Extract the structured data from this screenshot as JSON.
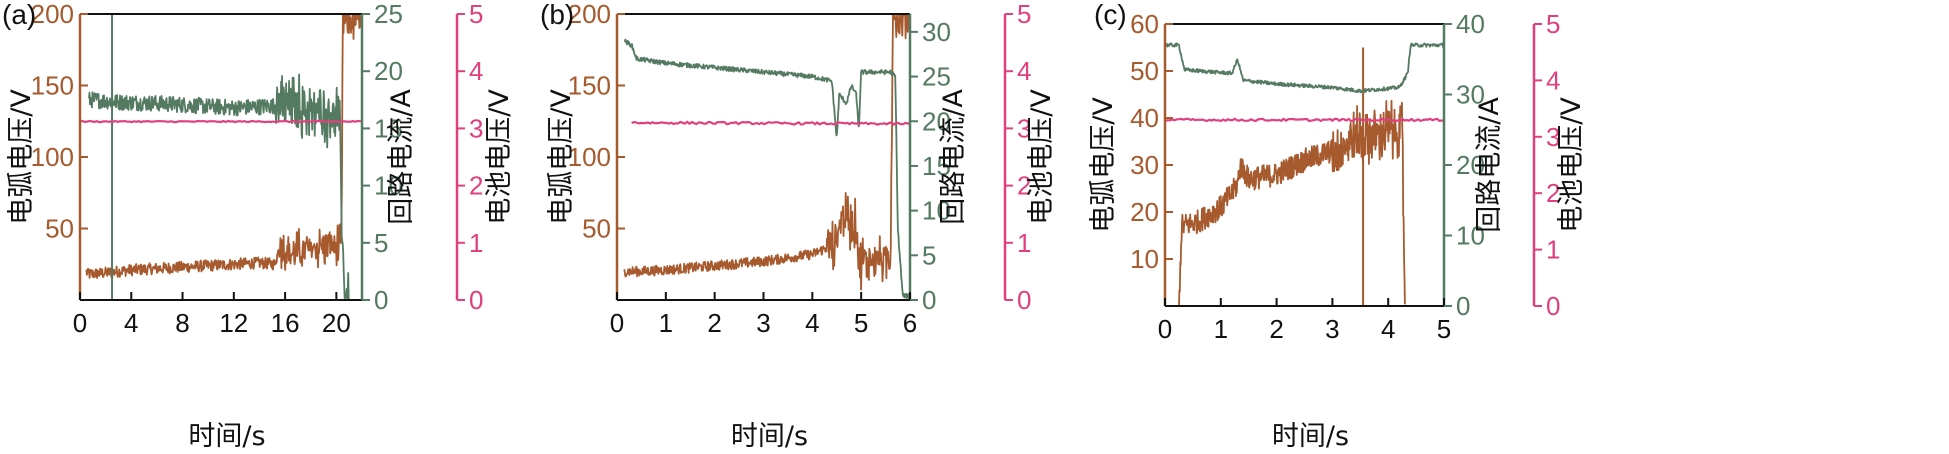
{
  "colors": {
    "arc": "#a65a2e",
    "current": "#557a62",
    "battery": "#e0407e",
    "axis": "#111111"
  },
  "chart_data": [
    {
      "type": "line",
      "panel_label": "(a)",
      "xlabel": "时间/s",
      "xlim": [
        0,
        22
      ],
      "xticks": [
        0,
        4,
        8,
        12,
        16,
        20
      ],
      "y_axes": [
        {
          "name": "电弧电压/V",
          "lim": [
            0,
            200
          ],
          "ticks": [
            50,
            100,
            150,
            200
          ],
          "color": "arc"
        },
        {
          "name": "回路电流/A",
          "lim": [
            0,
            25
          ],
          "ticks": [
            0,
            5,
            10,
            15,
            20,
            25
          ],
          "color": "current"
        },
        {
          "name": "电池电压/V",
          "lim": [
            0,
            5
          ],
          "ticks": [
            0,
            1,
            2,
            3,
            4,
            5
          ],
          "color": "battery"
        }
      ],
      "series": [
        {
          "axis": 0,
          "points": [
            [
              0.5,
              20
            ],
            [
              0.6,
              18
            ],
            [
              2,
              19
            ],
            [
              4,
              21
            ],
            [
              6,
              22
            ],
            [
              8,
              23
            ],
            [
              10,
              24
            ],
            [
              12,
              25
            ],
            [
              14,
              26
            ],
            [
              15.2,
              25
            ],
            [
              15.6,
              38
            ],
            [
              16.5,
              32
            ],
            [
              18,
              36
            ],
            [
              19.5,
              38
            ],
            [
              20.4,
              38
            ],
            [
              20.5,
              195
            ],
            [
              22,
              195
            ]
          ],
          "noise": 4,
          "spike_start": 15.5,
          "spike_amp": 14
        },
        {
          "axis": 1,
          "points": [
            [
              0.7,
              17.5
            ],
            [
              1,
              17.5
            ],
            [
              3,
              17.3
            ],
            [
              6,
              17.2
            ],
            [
              9,
              17
            ],
            [
              12,
              16.8
            ],
            [
              14,
              16.9
            ],
            [
              15.4,
              17
            ],
            [
              18,
              16.5
            ],
            [
              20.2,
              16.4
            ],
            [
              20.6,
              1
            ],
            [
              21,
              0.2
            ]
          ],
          "noise": 0.7,
          "spike_start": 15.3,
          "spike_amp": 2.8,
          "extra": [
            [
              2.5,
              25
            ]
          ]
        },
        {
          "axis": 2,
          "points": [
            [
              0,
              3.12
            ],
            [
              22,
              3.12
            ]
          ],
          "noise": 0.01
        }
      ]
    },
    {
      "type": "line",
      "panel_label": "(b)",
      "xlabel": "时间/s",
      "xlim": [
        0,
        6
      ],
      "xticks": [
        0,
        1,
        2,
        3,
        4,
        5,
        6
      ],
      "y_axes": [
        {
          "name": "电弧电压/V",
          "lim": [
            0,
            200
          ],
          "ticks": [
            50,
            100,
            150,
            200
          ],
          "color": "arc"
        },
        {
          "name": "回路电流/A",
          "lim": [
            0,
            32
          ],
          "ticks": [
            0,
            5,
            10,
            15,
            20,
            25,
            30
          ],
          "color": "current"
        },
        {
          "name": "电池电压/V",
          "lim": [
            0,
            5
          ],
          "ticks": [
            0,
            1,
            2,
            3,
            4,
            5
          ],
          "color": "battery"
        }
      ],
      "series": [
        {
          "axis": 0,
          "points": [
            [
              0.15,
              20
            ],
            [
              0.5,
              20
            ],
            [
              1,
              21
            ],
            [
              2,
              24
            ],
            [
              3,
              27
            ],
            [
              4,
              32
            ],
            [
              4.4,
              38
            ],
            [
              4.5,
              42
            ],
            [
              4.6,
              60
            ],
            [
              4.75,
              55
            ],
            [
              4.9,
              52
            ],
            [
              4.95,
              28
            ],
            [
              5.2,
              28
            ],
            [
              5.6,
              28
            ],
            [
              5.65,
              200
            ],
            [
              6,
              198
            ]
          ],
          "noise": 3.5,
          "spike_start": 4.3,
          "spike_amp": 18
        },
        {
          "axis": 1,
          "points": [
            [
              0.15,
              29
            ],
            [
              0.3,
              28.5
            ],
            [
              0.4,
              27
            ],
            [
              1,
              26.5
            ],
            [
              2,
              26
            ],
            [
              3,
              25.5
            ],
            [
              4,
              25
            ],
            [
              4.4,
              24.5
            ],
            [
              4.5,
              18
            ],
            [
              4.55,
              23
            ],
            [
              4.7,
              22
            ],
            [
              4.8,
              24
            ],
            [
              4.9,
              23
            ],
            [
              4.95,
              19
            ],
            [
              5.0,
              25.5
            ],
            [
              5.6,
              25.5
            ],
            [
              5.7,
              25
            ],
            [
              5.75,
              8
            ],
            [
              5.85,
              0.5
            ],
            [
              6,
              0.4
            ]
          ],
          "noise": 0.25
        },
        {
          "axis": 2,
          "points": [
            [
              0.3,
              3.1
            ],
            [
              6,
              3.08
            ]
          ],
          "noise": 0.02
        }
      ]
    },
    {
      "type": "line",
      "panel_label": "(c)",
      "xlabel": "时间/s",
      "xlim": [
        0,
        5
      ],
      "xticks": [
        0,
        1,
        2,
        3,
        4,
        5
      ],
      "y_axes": [
        {
          "name": "电弧电压/V",
          "lim": [
            0,
            60
          ],
          "ticks": [
            10,
            20,
            30,
            40,
            50,
            60
          ],
          "color": "arc"
        },
        {
          "name": "回路电流/A",
          "lim": [
            0,
            40
          ],
          "ticks": [
            0,
            10,
            20,
            30,
            40
          ],
          "color": "current"
        },
        {
          "name": "电池电压/V",
          "lim": [
            0,
            5
          ],
          "ticks": [
            0,
            1,
            2,
            3,
            4,
            5
          ],
          "color": "battery"
        }
      ],
      "series": [
        {
          "axis": 0,
          "points": [
            [
              0.25,
              0
            ],
            [
              0.3,
              17
            ],
            [
              0.6,
              18
            ],
            [
              1.0,
              21
            ],
            [
              1.2,
              24
            ],
            [
              1.3,
              26
            ],
            [
              1.35,
              30
            ],
            [
              1.5,
              27
            ],
            [
              2,
              28
            ],
            [
              2.5,
              31
            ],
            [
              3,
              33
            ],
            [
              3.5,
              36
            ],
            [
              4,
              37
            ],
            [
              4.25,
              38
            ],
            [
              4.3,
              0
            ]
          ],
          "noise": 2.5,
          "spike_start": 3.0,
          "spike_amp": 5,
          "extra": [
            [
              1.3,
              0
            ],
            [
              3.55,
              55
            ]
          ]
        },
        {
          "axis": 1,
          "points": [
            [
              0,
              37
            ],
            [
              0.25,
              37
            ],
            [
              0.35,
              33.5
            ],
            [
              1.2,
              33
            ],
            [
              1.3,
              35
            ],
            [
              1.4,
              32
            ],
            [
              2,
              31.5
            ],
            [
              3,
              31
            ],
            [
              3.5,
              30.5
            ],
            [
              4.2,
              31
            ],
            [
              4.35,
              33
            ],
            [
              4.4,
              37
            ],
            [
              5,
              37
            ]
          ],
          "noise": 0.25
        },
        {
          "axis": 2,
          "points": [
            [
              0,
              3.3
            ],
            [
              5,
              3.3
            ]
          ],
          "noise": 0.02
        }
      ]
    }
  ]
}
